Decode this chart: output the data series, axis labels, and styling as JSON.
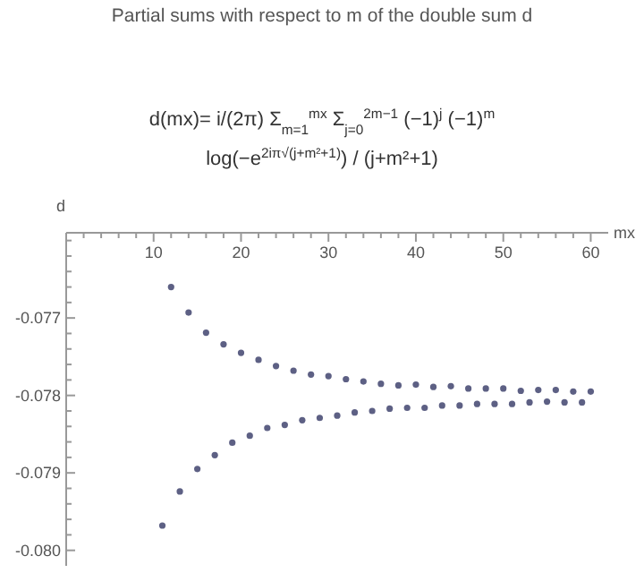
{
  "chart_data": {
    "type": "scatter",
    "title": "Partial sums with respect to m of the double sum d",
    "subtitle": "d(mx)= i/(2π) Σ$_{m=1}$$^{mx}$ Σ$_{j=0}$$^{2m−1}$ (−1)$^{j}$ (−1)$^{m}$ log(−e$^{2iπ√(j+m²+1)}$) / (j+m²+1)",
    "xlabel": "mx",
    "ylabel": "d",
    "marker": "circle",
    "grid": false,
    "xlim": [
      0,
      62
    ],
    "ylim": [
      -0.0802,
      -0.0759
    ],
    "xticks": [
      {
        "value": 2,
        "label": null
      },
      {
        "value": 4,
        "label": null
      },
      {
        "value": 6,
        "label": null
      },
      {
        "value": 8,
        "label": null
      },
      10,
      {
        "value": 12,
        "label": null
      },
      {
        "value": 14,
        "label": null
      },
      {
        "value": 16,
        "label": null
      },
      {
        "value": 18,
        "label": null
      },
      20,
      {
        "value": 22,
        "label": null
      },
      {
        "value": 24,
        "label": null
      },
      {
        "value": 26,
        "label": null
      },
      {
        "value": 28,
        "label": null
      },
      30,
      {
        "value": 32,
        "label": null
      },
      {
        "value": 34,
        "label": null
      },
      {
        "value": 36,
        "label": null
      },
      {
        "value": 38,
        "label": null
      },
      40,
      {
        "value": 42,
        "label": null
      },
      {
        "value": 44,
        "label": null
      },
      {
        "value": 46,
        "label": null
      },
      {
        "value": 48,
        "label": null
      },
      50,
      {
        "value": 52,
        "label": null
      },
      {
        "value": 54,
        "label": null
      },
      {
        "value": 56,
        "label": null
      },
      {
        "value": 58,
        "label": null
      },
      60
    ],
    "yticks": [
      {
        "value": -0.08,
        "label": "-0.080"
      },
      {
        "value": -0.0798,
        "label": null
      },
      {
        "value": -0.0796,
        "label": null
      },
      {
        "value": -0.0794,
        "label": null
      },
      {
        "value": -0.0792,
        "label": null
      },
      -0.079,
      {
        "value": -0.0788,
        "label": null
      },
      {
        "value": -0.0786,
        "label": null
      },
      {
        "value": -0.0784,
        "label": null
      },
      {
        "value": -0.0782,
        "label": null
      },
      -0.078,
      {
        "value": -0.0778,
        "label": null
      },
      {
        "value": -0.0776,
        "label": null
      },
      {
        "value": -0.0774,
        "label": null
      },
      {
        "value": -0.0772,
        "label": null
      },
      -0.077,
      {
        "value": -0.0768,
        "label": null
      },
      {
        "value": -0.0766,
        "label": null
      },
      {
        "value": -0.0764,
        "label": null
      },
      {
        "value": -0.0762,
        "label": null
      },
      {
        "value": -0.076,
        "label": null
      }
    ],
    "series": [
      {
        "color": "#5d6084",
        "x": [
          12,
          14,
          16,
          18,
          20,
          22,
          24,
          26,
          28,
          30,
          32,
          34,
          36,
          38,
          40,
          42,
          44,
          46,
          48,
          50,
          52,
          54,
          56,
          58,
          60
        ],
        "values": [
          -0.0766,
          -0.07693,
          -0.07719,
          -0.07734,
          -0.07745,
          -0.07754,
          -0.07762,
          -0.07768,
          -0.07773,
          -0.07775,
          -0.07779,
          -0.07782,
          -0.07785,
          -0.07787,
          -0.07786,
          -0.07789,
          -0.07788,
          -0.07791,
          -0.07791,
          -0.07791,
          -0.07794,
          -0.07793,
          -0.07793,
          -0.07795,
          -0.07795
        ]
      },
      {
        "color": "#5d6084",
        "x": [
          11,
          13,
          15,
          17,
          19,
          21,
          23,
          25,
          27,
          29,
          31,
          33,
          35,
          37,
          39,
          41,
          43,
          45,
          47,
          49,
          51,
          53,
          55,
          57,
          59
        ],
        "values": [
          -0.07968,
          -0.07924,
          -0.07895,
          -0.07877,
          -0.07861,
          -0.07852,
          -0.07842,
          -0.07838,
          -0.07832,
          -0.07829,
          -0.07826,
          -0.07822,
          -0.0782,
          -0.07817,
          -0.07816,
          -0.07816,
          -0.07813,
          -0.07813,
          -0.07811,
          -0.07811,
          -0.07811,
          -0.07809,
          -0.07808,
          -0.07809,
          -0.07809
        ]
      }
    ]
  }
}
